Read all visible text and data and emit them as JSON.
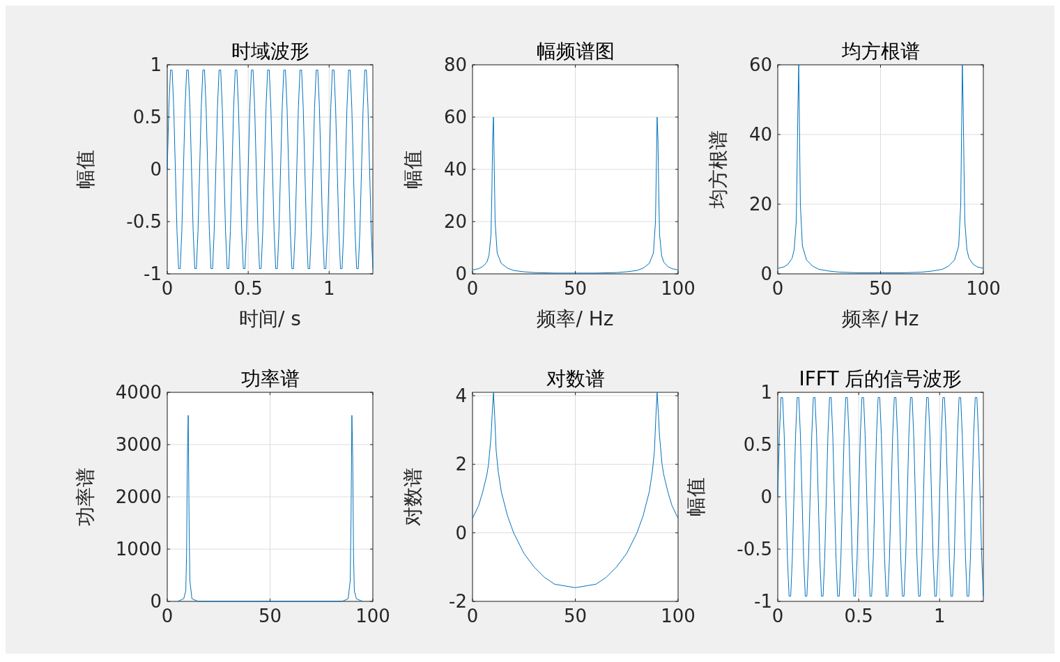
{
  "chart_data": [
    {
      "type": "line",
      "title": "时域波形",
      "xlabel": "时间/ s",
      "ylabel": "幅值",
      "xlim": [
        0,
        1.27
      ],
      "xticks": [
        0,
        0.5,
        1
      ],
      "ylim": [
        -1,
        1
      ],
      "yticks": [
        -1,
        -0.5,
        0,
        0.5,
        1
      ],
      "grid": true,
      "series": [
        {
          "color": "#0072bd",
          "x": [
            0,
            0.01,
            0.02,
            0.03,
            0.04,
            0.05,
            0.06,
            0.07,
            0.08,
            0.09,
            0.1,
            0.11,
            0.12,
            0.13,
            0.14,
            0.15,
            0.16,
            0.17,
            0.18,
            0.19,
            0.2,
            0.21,
            0.22,
            0.23,
            0.24,
            0.25,
            0.26,
            0.27,
            0.28,
            0.29,
            0.3,
            0.31,
            0.32,
            0.33,
            0.34,
            0.35,
            0.36,
            0.37,
            0.38,
            0.39,
            0.4,
            0.41,
            0.42,
            0.43,
            0.44,
            0.45,
            0.46,
            0.47,
            0.48,
            0.49,
            0.5,
            0.51,
            0.52,
            0.53,
            0.54,
            0.55,
            0.56,
            0.57,
            0.58,
            0.59,
            0.6,
            0.61,
            0.62,
            0.63,
            0.64,
            0.65,
            0.66,
            0.67,
            0.68,
            0.69,
            0.7,
            0.71,
            0.72,
            0.73,
            0.74,
            0.75,
            0.76,
            0.77,
            0.78,
            0.79,
            0.8,
            0.81,
            0.82,
            0.83,
            0.84,
            0.85,
            0.86,
            0.87,
            0.88,
            0.89,
            0.9,
            0.91,
            0.92,
            0.93,
            0.94,
            0.95,
            0.96,
            0.97,
            0.98,
            0.99,
            1,
            1.01,
            1.02,
            1.03,
            1.04,
            1.05,
            1.06,
            1.07,
            1.08,
            1.09,
            1.1,
            1.11,
            1.12,
            1.13,
            1.14,
            1.15,
            1.16,
            1.17,
            1.18,
            1.19,
            1.2,
            1.21,
            1.22,
            1.23,
            1.24,
            1.25,
            1.26,
            1.27
          ],
          "values": [
            0,
            0.59,
            0.95,
            0.95,
            0.59,
            0,
            -0.59,
            -0.95,
            -0.95,
            -0.59,
            0,
            0.59,
            0.95,
            0.95,
            0.59,
            0,
            -0.59,
            -0.95,
            -0.95,
            -0.59,
            0,
            0.59,
            0.95,
            0.95,
            0.59,
            0,
            -0.59,
            -0.95,
            -0.95,
            -0.59,
            0,
            0.59,
            0.95,
            0.95,
            0.59,
            0,
            -0.59,
            -0.95,
            -0.95,
            -0.59,
            0,
            0.59,
            0.95,
            0.95,
            0.59,
            0,
            -0.59,
            -0.95,
            -0.95,
            -0.59,
            0,
            0.59,
            0.95,
            0.95,
            0.59,
            0,
            -0.59,
            -0.95,
            -0.95,
            -0.59,
            0,
            0.59,
            0.95,
            0.95,
            0.59,
            0,
            -0.59,
            -0.95,
            -0.95,
            -0.59,
            0,
            0.59,
            0.95,
            0.95,
            0.59,
            0,
            -0.59,
            -0.95,
            -0.95,
            -0.59,
            0,
            0.59,
            0.95,
            0.95,
            0.59,
            0,
            -0.59,
            -0.95,
            -0.95,
            -0.59,
            0,
            0.59,
            0.95,
            0.95,
            0.59,
            0,
            -0.59,
            -0.95,
            -0.95,
            -0.59,
            0,
            0.59,
            0.95,
            0.95,
            0.59,
            0,
            -0.59,
            -0.95,
            -0.95,
            -0.59,
            0,
            0.59,
            0.95,
            0.95,
            0.59,
            0,
            -0.59,
            -0.95,
            -0.95,
            -0.59,
            0,
            0.59,
            0.95,
            0.95,
            0.59,
            0,
            -0.59,
            -0.95
          ]
        }
      ]
    },
    {
      "type": "line",
      "title": "幅频谱图",
      "xlabel": "频率/ Hz",
      "ylabel": "幅值",
      "xlim": [
        0,
        100
      ],
      "xticks": [
        0,
        50,
        100
      ],
      "ylim": [
        0,
        80
      ],
      "yticks": [
        0,
        20,
        40,
        60,
        80
      ],
      "grid": true,
      "series": [
        {
          "color": "#0072bd",
          "x": [
            0,
            3,
            5,
            7,
            8,
            9,
            9.4,
            9.8,
            10.2,
            10.6,
            11,
            12,
            14,
            17,
            20,
            25,
            30,
            40,
            50,
            60,
            70,
            75,
            80,
            83,
            86,
            88,
            89,
            89.4,
            89.8,
            90.2,
            90.6,
            91,
            92,
            93,
            95,
            97,
            100
          ],
          "values": [
            1.5,
            2,
            2.8,
            4.5,
            7,
            15,
            30,
            52,
            60,
            40,
            20,
            8,
            4,
            2.2,
            1.3,
            0.8,
            0.5,
            0.3,
            0.3,
            0.3,
            0.5,
            0.8,
            1.3,
            2.2,
            4,
            8,
            20,
            40,
            60,
            52,
            30,
            15,
            7,
            4.5,
            2.8,
            2,
            1.5
          ]
        }
      ]
    },
    {
      "type": "line",
      "title": "均方根谱",
      "xlabel": "频率/ Hz",
      "ylabel": "均方根谱",
      "xlim": [
        0,
        100
      ],
      "xticks": [
        0,
        50,
        100
      ],
      "ylim": [
        0,
        60
      ],
      "yticks": [
        0,
        20,
        40,
        60
      ],
      "grid": true,
      "series": [
        {
          "color": "#0072bd",
          "x": [
            0,
            3,
            5,
            7,
            8,
            9,
            9.4,
            9.8,
            10.2,
            10.6,
            11,
            12,
            14,
            17,
            20,
            25,
            30,
            40,
            50,
            60,
            70,
            75,
            80,
            83,
            86,
            88,
            89,
            89.4,
            89.8,
            90.2,
            90.6,
            91,
            92,
            93,
            95,
            97,
            100
          ],
          "values": [
            1.6,
            2,
            2.8,
            4.5,
            7,
            15,
            30,
            48,
            60,
            40,
            20,
            8,
            4,
            2.2,
            1.3,
            0.8,
            0.5,
            0.3,
            0.3,
            0.3,
            0.5,
            0.8,
            1.3,
            2.2,
            4,
            8,
            20,
            40,
            60,
            48,
            30,
            15,
            7,
            4.5,
            2.8,
            2,
            1.6
          ]
        }
      ]
    },
    {
      "type": "line",
      "title": "功率谱",
      "ylabel": "功率谱",
      "xlim": [
        0,
        100
      ],
      "xticks": [
        0,
        50,
        100
      ],
      "ylim": [
        0,
        4000
      ],
      "yticks": [
        0,
        1000,
        2000,
        3000,
        4000
      ],
      "grid": true,
      "series": [
        {
          "color": "#0072bd",
          "x": [
            5,
            8,
            9,
            9.4,
            9.8,
            10.2,
            10.6,
            11,
            12,
            15,
            85,
            88,
            89,
            89.4,
            89.8,
            90.2,
            90.6,
            91,
            92,
            95
          ],
          "values": [
            0,
            50,
            200,
            900,
            2800,
            3560,
            1600,
            400,
            50,
            0,
            0,
            50,
            400,
            1600,
            3560,
            2800,
            900,
            200,
            50,
            0
          ]
        }
      ]
    },
    {
      "type": "line",
      "title": "对数谱",
      "ylabel": "对数谱",
      "xlim": [
        0,
        100
      ],
      "xticks": [
        0,
        50,
        100
      ],
      "ylim": [
        -2,
        4.1
      ],
      "yticks": [
        -2,
        0,
        2,
        4
      ],
      "grid": true,
      "series": [
        {
          "color": "#0072bd",
          "x": [
            0,
            3,
            5,
            7,
            7.8,
            9,
            9.6,
            10.2,
            10.8,
            11.5,
            12.5,
            14,
            17,
            20,
            25,
            30,
            35,
            40,
            50,
            60,
            65,
            70,
            75,
            80,
            83,
            86,
            87.5,
            88.5,
            89.2,
            89.8,
            90.4,
            91,
            92.2,
            93,
            95,
            97,
            100
          ],
          "values": [
            0.42,
            0.8,
            1.2,
            1.7,
            2,
            2.8,
            3.5,
            4.09,
            3.4,
            2.4,
            1.8,
            1.2,
            0.5,
            0,
            -0.6,
            -1,
            -1.3,
            -1.5,
            -1.6,
            -1.5,
            -1.3,
            -1,
            -0.6,
            0,
            0.5,
            1.2,
            1.8,
            2.4,
            3.4,
            4.09,
            3.5,
            2.8,
            2,
            1.7,
            1.2,
            0.8,
            0.42
          ]
        }
      ]
    },
    {
      "type": "line",
      "title": "IFFT 后的信号波形",
      "ylabel": "幅值",
      "xlim": [
        0,
        1.27
      ],
      "xticks": [
        0,
        0.5,
        1
      ],
      "ylim": [
        -1,
        1
      ],
      "yticks": [
        -1,
        -0.5,
        0,
        0.5,
        1
      ],
      "grid": true,
      "series": [
        {
          "color": "#0072bd",
          "x": [
            0,
            0.01,
            0.02,
            0.03,
            0.04,
            0.05,
            0.06,
            0.07,
            0.08,
            0.09,
            0.1,
            0.11,
            0.12,
            0.13,
            0.14,
            0.15,
            0.16,
            0.17,
            0.18,
            0.19,
            0.2,
            0.21,
            0.22,
            0.23,
            0.24,
            0.25,
            0.26,
            0.27,
            0.28,
            0.29,
            0.3,
            0.31,
            0.32,
            0.33,
            0.34,
            0.35,
            0.36,
            0.37,
            0.38,
            0.39,
            0.4,
            0.41,
            0.42,
            0.43,
            0.44,
            0.45,
            0.46,
            0.47,
            0.48,
            0.49,
            0.5,
            0.51,
            0.52,
            0.53,
            0.54,
            0.55,
            0.56,
            0.57,
            0.58,
            0.59,
            0.6,
            0.61,
            0.62,
            0.63,
            0.64,
            0.65,
            0.66,
            0.67,
            0.68,
            0.69,
            0.7,
            0.71,
            0.72,
            0.73,
            0.74,
            0.75,
            0.76,
            0.77,
            0.78,
            0.79,
            0.8,
            0.81,
            0.82,
            0.83,
            0.84,
            0.85,
            0.86,
            0.87,
            0.88,
            0.89,
            0.9,
            0.91,
            0.92,
            0.93,
            0.94,
            0.95,
            0.96,
            0.97,
            0.98,
            0.99,
            1,
            1.01,
            1.02,
            1.03,
            1.04,
            1.05,
            1.06,
            1.07,
            1.08,
            1.09,
            1.1,
            1.11,
            1.12,
            1.13,
            1.14,
            1.15,
            1.16,
            1.17,
            1.18,
            1.19,
            1.2,
            1.21,
            1.22,
            1.23,
            1.24,
            1.25,
            1.26,
            1.27
          ],
          "values": [
            0,
            0.59,
            0.95,
            0.95,
            0.59,
            0,
            -0.59,
            -0.95,
            -0.95,
            -0.59,
            0,
            0.59,
            0.95,
            0.95,
            0.59,
            0,
            -0.59,
            -0.95,
            -0.95,
            -0.59,
            0,
            0.59,
            0.95,
            0.95,
            0.59,
            0,
            -0.59,
            -0.95,
            -0.95,
            -0.59,
            0,
            0.59,
            0.95,
            0.95,
            0.59,
            0,
            -0.59,
            -0.95,
            -0.95,
            -0.59,
            0,
            0.59,
            0.95,
            0.95,
            0.59,
            0,
            -0.59,
            -0.95,
            -0.95,
            -0.59,
            0,
            0.59,
            0.95,
            0.95,
            0.59,
            0,
            -0.59,
            -0.95,
            -0.95,
            -0.59,
            0,
            0.59,
            0.95,
            0.95,
            0.59,
            0,
            -0.59,
            -0.95,
            -0.95,
            -0.59,
            0,
            0.59,
            0.95,
            0.95,
            0.59,
            0,
            -0.59,
            -0.95,
            -0.95,
            -0.59,
            0,
            0.59,
            0.95,
            0.95,
            0.59,
            0,
            -0.59,
            -0.95,
            -0.95,
            -0.59,
            0,
            0.59,
            0.95,
            0.95,
            0.59,
            0,
            -0.59,
            -0.95,
            -0.95,
            -0.59,
            0,
            0.59,
            0.95,
            0.95,
            0.59,
            0,
            -0.59,
            -0.95,
            -0.95,
            -0.59,
            0,
            0.59,
            0.95,
            0.95,
            0.59,
            0,
            -0.59,
            -0.95,
            -0.95,
            -0.59,
            0,
            0.59,
            0.95,
            0.95,
            0.59,
            0,
            -0.59,
            -0.95
          ]
        }
      ]
    }
  ]
}
